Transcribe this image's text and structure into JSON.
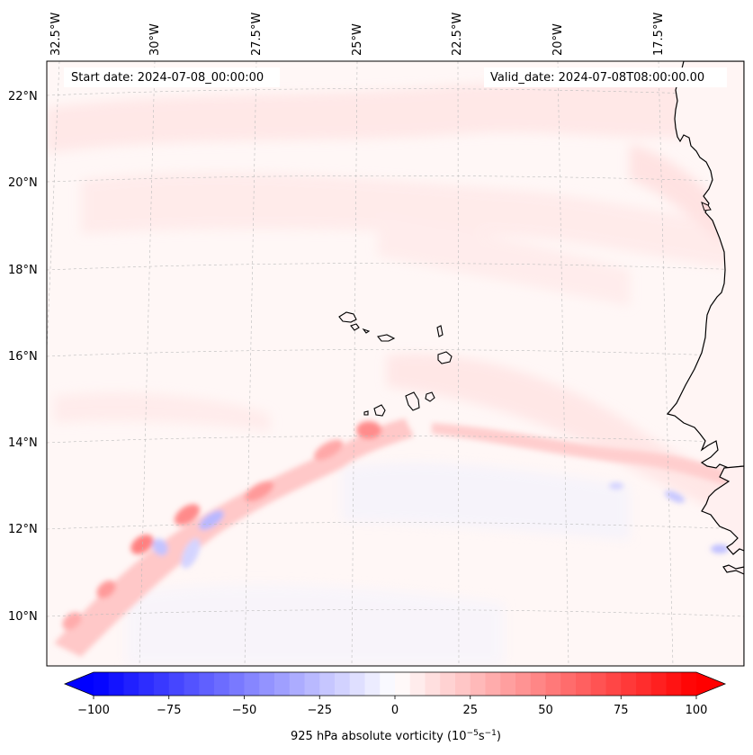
{
  "header": {
    "start_date": "Start date: 2024-07-08_00:00:00",
    "valid_date": "Valid_date: 2024-07-08T08:00:00.00"
  },
  "map": {
    "lon_labels": [
      "32.5°W",
      "30°W",
      "27.5°W",
      "25°W",
      "22.5°W",
      "20°W",
      "17.5°W"
    ],
    "lat_labels": [
      "22°N",
      "20°N",
      "18°N",
      "16°N",
      "14°N",
      "12°N",
      "10°N"
    ],
    "region": "Eastern tropical Atlantic, Cape Verde Islands and West African coast"
  },
  "colorbar": {
    "ticks": [
      "−100",
      "−75",
      "−50",
      "−25",
      "0",
      "25",
      "50",
      "75",
      "100"
    ],
    "label_prefix": "925 hPa absolute vorticity (10",
    "label_exp1": "−5",
    "label_mid": "s",
    "label_exp2": "−1",
    "label_suffix": ")",
    "vmin": -100,
    "vmax": 100,
    "colormap": "bwr",
    "neg_color": "#0000ff",
    "pos_color": "#ff0000"
  }
}
